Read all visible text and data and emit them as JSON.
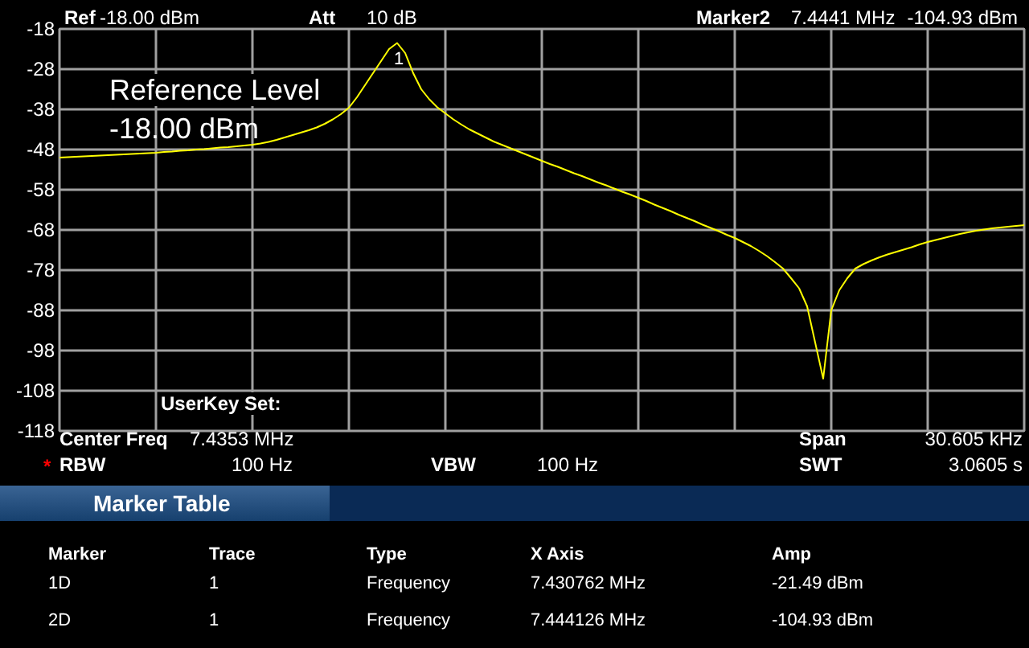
{
  "chart_data": {
    "type": "line",
    "categories": [
      null,
      null,
      null,
      null,
      null,
      null,
      null,
      null,
      null,
      null,
      null,
      null,
      null,
      null,
      null,
      null,
      null,
      null,
      null,
      null,
      null,
      null,
      null,
      null,
      null,
      null,
      null,
      null,
      null,
      null,
      null,
      null,
      null,
      null,
      null,
      null,
      null,
      null,
      null,
      null,
      null,
      null,
      null,
      null,
      null,
      null,
      null,
      null,
      null,
      null,
      null,
      null,
      null,
      null,
      null,
      null,
      null,
      null,
      null,
      null,
      null,
      null,
      null,
      null,
      null,
      null,
      null,
      null,
      null,
      null,
      null,
      null,
      null,
      null,
      null,
      null,
      null,
      null,
      null,
      null,
      null,
      null,
      null,
      null,
      null,
      null,
      null,
      null,
      null,
      null,
      null,
      null,
      null,
      null,
      null,
      null,
      null,
      null,
      null,
      null,
      null,
      null,
      null,
      null,
      null,
      null,
      null,
      null,
      null,
      null,
      null,
      null,
      null,
      null,
      null,
      null,
      null,
      null,
      null,
      null,
      null
    ],
    "series": [
      {
        "color": "#ffff00",
        "values": [
          -50,
          -49.9,
          -49.8,
          -49.7,
          -49.6,
          -49.5,
          -49.4,
          -49.3,
          -49.2,
          -49.1,
          -49,
          -48.9,
          -48.8,
          -48.6,
          -48.5,
          -48.3,
          -48.2,
          -48,
          -47.9,
          -47.7,
          -47.5,
          -47.4,
          -47.2,
          -47,
          -46.8,
          -46.5,
          -46.1,
          -45.6,
          -45,
          -44.4,
          -43.8,
          -43.2,
          -42.5,
          -41.6,
          -40.5,
          -39.2,
          -37.6,
          -35,
          -32,
          -29,
          -26,
          -23,
          -21.5,
          -24,
          -29,
          -33,
          -35.5,
          -37.5,
          -39,
          -40.5,
          -41.8,
          -43,
          -44,
          -45,
          -46,
          -46.8,
          -47.6,
          -48.4,
          -49.2,
          -50,
          -50.8,
          -51.6,
          -52.3,
          -53.1,
          -53.9,
          -54.6,
          -55.4,
          -56.2,
          -56.9,
          -57.7,
          -58.5,
          -59.2,
          -60,
          -60.8,
          -61.7,
          -62.5,
          -63.3,
          -64.2,
          -65,
          -65.8,
          -66.7,
          -67.5,
          -68.3,
          -69.2,
          -70,
          -71,
          -72,
          -73.2,
          -74.5,
          -76,
          -77.6,
          -80,
          -82.5,
          -87,
          -96,
          -105,
          -88,
          -83,
          -80,
          -77.6,
          -76.5,
          -75.6,
          -74.8,
          -74.1,
          -73.5,
          -72.9,
          -72.3,
          -71.6,
          -71,
          -70.5,
          -70,
          -69.5,
          -69,
          -68.6,
          -68.2,
          -67.9,
          -67.6,
          -67.4,
          -67.2,
          -67,
          -66.8
        ]
      }
    ],
    "ylim": [
      -118,
      -18
    ],
    "yticks": [
      -18,
      -28,
      -38,
      -48,
      -58,
      -68,
      -78,
      -88,
      -98,
      -108,
      -118
    ],
    "grid": true,
    "marker": "none",
    "line_style": "solid",
    "annotations": [
      "Ref",
      "-18.00 dBm",
      "Att",
      "10 dB",
      "Marker2",
      "7.4441 MHz",
      "-104.93 dBm",
      "Reference Level",
      "-18.00 dBm",
      "1",
      "UserKey Set:",
      "Center Freq",
      "7.4353 MHz",
      "Span",
      "30.605 kHz",
      "*",
      "RBW",
      "100 Hz",
      "VBW",
      "100 Hz",
      "SWT",
      "3.0605 s",
      "Marker Table",
      "Marker",
      "Trace",
      "Type",
      "X Axis",
      "Amp",
      "1D",
      "1",
      "Frequency",
      "7.430762 MHz",
      "-21.49 dBm",
      "2D",
      "1",
      "Frequency",
      "7.444126 MHz",
      "-104.93 dBm"
    ]
  }
}
